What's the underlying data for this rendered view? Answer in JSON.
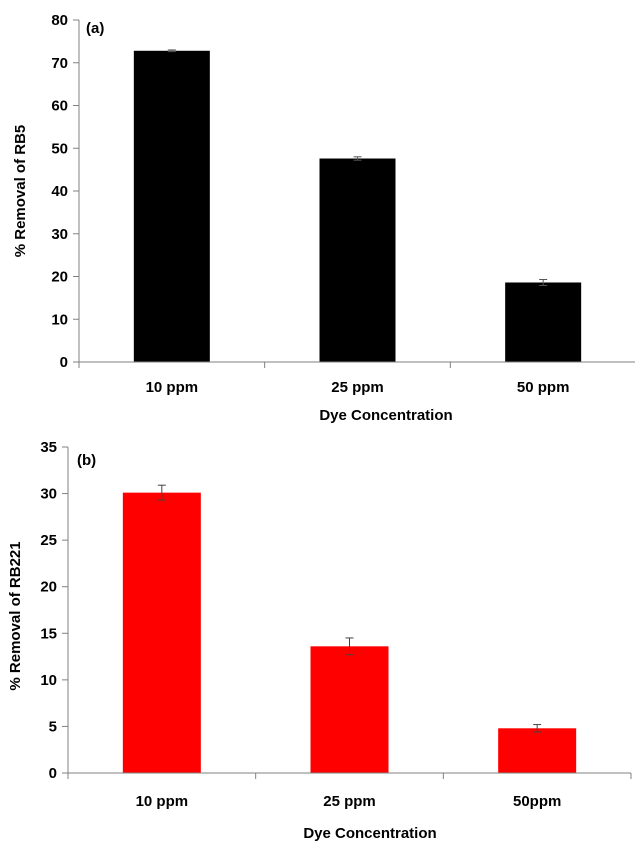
{
  "chart_data": [
    {
      "type": "bar",
      "panel_label": "(a)",
      "categories": [
        "10 ppm",
        "25 ppm",
        "50 ppm"
      ],
      "values": [
        72.8,
        47.6,
        18.6
      ],
      "error": [
        0.2,
        0.4,
        0.7
      ],
      "xlabel": "Dye Concentration",
      "ylabel": "% Removal of RB5",
      "ylim": [
        0,
        80
      ],
      "yticks": [
        "0",
        "10",
        "20",
        "30",
        "40",
        "50",
        "60",
        "70",
        "80"
      ],
      "bar_color": "#000000",
      "grid": false
    },
    {
      "type": "bar",
      "panel_label": "(b)",
      "categories": [
        "10 ppm",
        "25 ppm",
        "50ppm"
      ],
      "values": [
        30.1,
        13.6,
        4.8
      ],
      "error": [
        0.8,
        0.9,
        0.4
      ],
      "xlabel": "Dye Concentration",
      "ylabel": "% Removal of RB221",
      "ylim": [
        0,
        35
      ],
      "yticks": [
        "0",
        "5",
        "10",
        "15",
        "20",
        "25",
        "30",
        "35"
      ],
      "bar_color": "#ff0000",
      "grid": false
    }
  ]
}
